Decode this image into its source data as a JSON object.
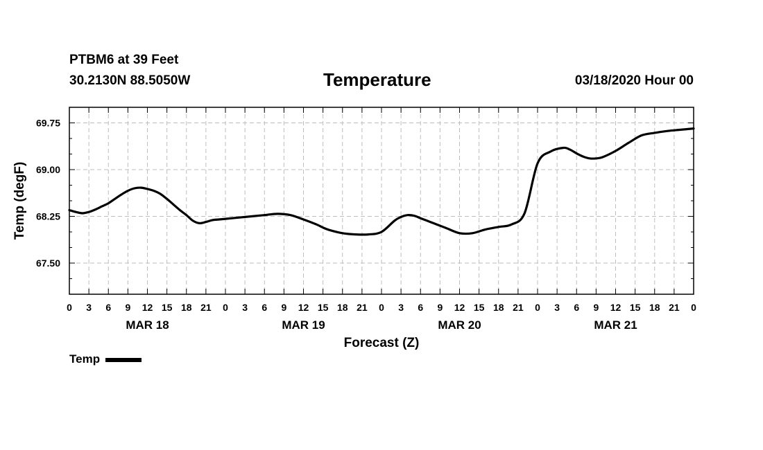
{
  "header": {
    "station": "PTBM6 at 39 Feet",
    "location": "30.2130N 88.5050W",
    "datetime": "03/18/2020 Hour 00"
  },
  "chart_data": {
    "type": "line",
    "title": "Temperature",
    "xlabel": "Forecast (Z)",
    "ylabel": "Temp (degF)",
    "ylim": [
      67.0,
      70.0
    ],
    "xlim": [
      0,
      96
    ],
    "yticks": [
      67.5,
      68.25,
      69.0,
      69.75
    ],
    "ytick_labels": [
      "67.50",
      "68.25",
      "69.00",
      "69.75"
    ],
    "xtick_hours": [
      0,
      3,
      6,
      9,
      12,
      15,
      18,
      21,
      24,
      27,
      30,
      33,
      36,
      39,
      42,
      45,
      48,
      51,
      54,
      57,
      60,
      63,
      66,
      69,
      72,
      75,
      78,
      81,
      84,
      87,
      90,
      93,
      96
    ],
    "xtick_labels": [
      "0",
      "3",
      "6",
      "9",
      "12",
      "15",
      "18",
      "21",
      "0",
      "3",
      "6",
      "9",
      "12",
      "15",
      "18",
      "21",
      "0",
      "3",
      "6",
      "9",
      "12",
      "15",
      "18",
      "21",
      "0",
      "3",
      "6",
      "9",
      "12",
      "15",
      "18",
      "21",
      "0"
    ],
    "day_labels": [
      {
        "label": "MAR 18",
        "hour": 12
      },
      {
        "label": "MAR 19",
        "hour": 36
      },
      {
        "label": "MAR 20",
        "hour": 60
      },
      {
        "label": "MAR 21",
        "hour": 84
      }
    ],
    "grid": true,
    "series": [
      {
        "name": "Temp",
        "color": "#000000",
        "x": [
          0,
          1,
          2,
          3,
          4,
          5,
          6,
          7,
          8,
          9,
          10,
          11,
          12,
          13,
          14,
          15,
          16,
          17,
          18,
          19,
          20,
          21,
          22,
          23,
          24,
          26,
          28,
          30,
          32,
          34,
          36,
          38,
          39,
          40,
          42,
          44,
          46,
          48,
          50,
          51,
          52,
          53,
          54,
          55,
          56,
          57,
          58,
          60,
          62,
          64,
          66,
          68,
          70,
          72,
          74,
          76,
          77,
          78,
          79,
          80,
          81,
          82,
          84,
          86,
          88,
          90,
          92,
          94,
          96
        ],
        "values": [
          68.35,
          68.32,
          68.3,
          68.32,
          68.36,
          68.41,
          68.46,
          68.53,
          68.6,
          68.66,
          68.7,
          68.71,
          68.69,
          68.66,
          68.61,
          68.53,
          68.44,
          68.35,
          68.27,
          68.18,
          68.14,
          68.16,
          68.19,
          68.2,
          68.21,
          68.23,
          68.25,
          68.27,
          68.29,
          68.27,
          68.2,
          68.12,
          68.07,
          68.03,
          67.98,
          67.96,
          67.96,
          68.0,
          68.18,
          68.24,
          68.27,
          68.26,
          68.22,
          68.18,
          68.14,
          68.1,
          68.06,
          67.98,
          67.98,
          68.04,
          68.08,
          68.12,
          68.3,
          69.1,
          69.29,
          69.35,
          69.32,
          69.26,
          69.21,
          69.18,
          69.18,
          69.2,
          69.3,
          69.43,
          69.55,
          69.59,
          69.62,
          69.64,
          69.66
        ]
      }
    ]
  },
  "legend": {
    "items": [
      {
        "label": "Temp"
      }
    ]
  }
}
